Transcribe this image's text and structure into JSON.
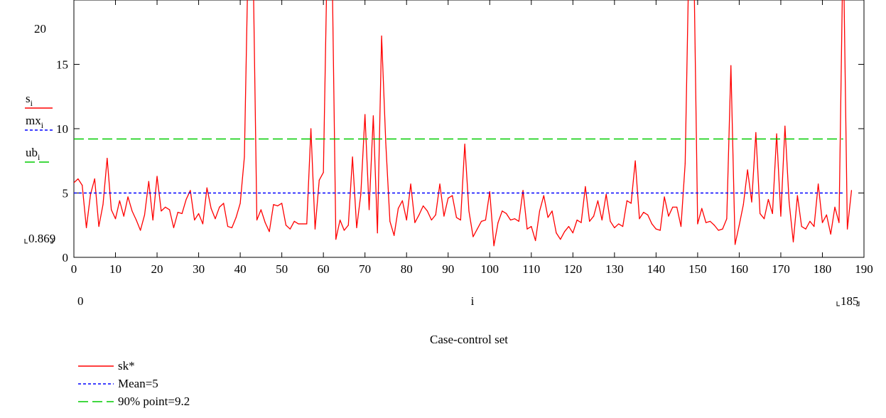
{
  "chart_data": {
    "type": "line",
    "title": "",
    "xlabel": "Case-control set",
    "ylabel": "",
    "xlim": [
      0,
      190
    ],
    "ylim": [
      0,
      20
    ],
    "x_ticks": [
      0,
      10,
      20,
      30,
      40,
      50,
      60,
      70,
      80,
      90,
      100,
      110,
      120,
      130,
      140,
      150,
      160,
      170,
      180,
      190
    ],
    "y_ticks": [
      0,
      5,
      10,
      15
    ],
    "y_top_readout": "20",
    "y_bottom_readout": "0.869",
    "x_left_readout": "0",
    "x_right_readout": "185",
    "x_variable": "i",
    "grid": false,
    "legend_position": "bottom-left",
    "left_labels": [
      {
        "base": "s",
        "sub": "i",
        "color": "#ff0000",
        "dash": ""
      },
      {
        "base": "mx",
        "sub": "i",
        "color": "#0000ff",
        "dash": "4,3"
      },
      {
        "base": "ub",
        "sub": "i",
        "color": "#00cc00",
        "dash": "14,6"
      }
    ],
    "series": [
      {
        "name": "sk*",
        "color": "#ff0000",
        "dash": "",
        "x_start": 0,
        "values": [
          5.8,
          6.1,
          5.6,
          2.3,
          4.9,
          6.1,
          2.4,
          4.1,
          7.7,
          3.7,
          3.0,
          4.4,
          3.2,
          4.7,
          3.6,
          2.9,
          2.1,
          3.3,
          5.9,
          2.9,
          6.3,
          3.6,
          3.9,
          3.7,
          2.3,
          3.5,
          3.4,
          4.5,
          5.2,
          2.9,
          3.4,
          2.6,
          5.4,
          3.8,
          3.0,
          3.9,
          4.2,
          2.4,
          2.3,
          3.1,
          4.2,
          7.8,
          25,
          25,
          2.9,
          3.7,
          2.7,
          2.0,
          4.1,
          4.0,
          4.2,
          2.5,
          2.2,
          2.8,
          2.6,
          2.6,
          2.6,
          10.0,
          2.2,
          6.0,
          6.6,
          25,
          25,
          1.4,
          2.9,
          2.1,
          2.5,
          7.8,
          2.3,
          4.9,
          11.1,
          3.7,
          11.0,
          1.9,
          17.2,
          8.9,
          2.8,
          1.7,
          3.8,
          4.4,
          2.9,
          5.7,
          2.7,
          3.3,
          4.0,
          3.6,
          2.9,
          3.3,
          5.7,
          3.2,
          4.6,
          4.8,
          3.1,
          2.9,
          8.8,
          3.6,
          1.6,
          2.2,
          2.8,
          2.9,
          5.1,
          0.9,
          2.7,
          3.6,
          3.4,
          2.9,
          3.0,
          2.8,
          5.2,
          2.2,
          2.4,
          1.3,
          3.6,
          4.8,
          3.1,
          3.6,
          1.9,
          1.4,
          2.0,
          2.4,
          1.9,
          2.9,
          2.7,
          5.5,
          2.8,
          3.2,
          4.4,
          2.9,
          4.9,
          2.8,
          2.3,
          2.6,
          2.4,
          4.4,
          4.2,
          7.5,
          3.0,
          3.5,
          3.3,
          2.6,
          2.2,
          2.1,
          4.7,
          3.2,
          3.9,
          3.9,
          2.4,
          7.3,
          25,
          25,
          2.6,
          3.8,
          2.7,
          2.8,
          2.5,
          2.1,
          2.2,
          3.0,
          14.9,
          1.0,
          2.5,
          4.1,
          6.8,
          4.3,
          9.7,
          3.4,
          3.0,
          4.5,
          3.4,
          9.6,
          3.2,
          10.2,
          4.3,
          1.2,
          4.8,
          2.4,
          2.2,
          2.8,
          2.4,
          5.7,
          2.7,
          3.3,
          1.8,
          3.9,
          2.7,
          25,
          2.2,
          5.2
        ]
      },
      {
        "name": "Mean=5",
        "color": "#0000ff",
        "dash": "4,3",
        "constant": 5.0,
        "x_range": [
          0,
          185
        ]
      },
      {
        "name": "90% point=9.2",
        "color": "#00cc00",
        "dash": "14,6",
        "constant": 9.2,
        "x_range": [
          0,
          185
        ]
      }
    ]
  }
}
